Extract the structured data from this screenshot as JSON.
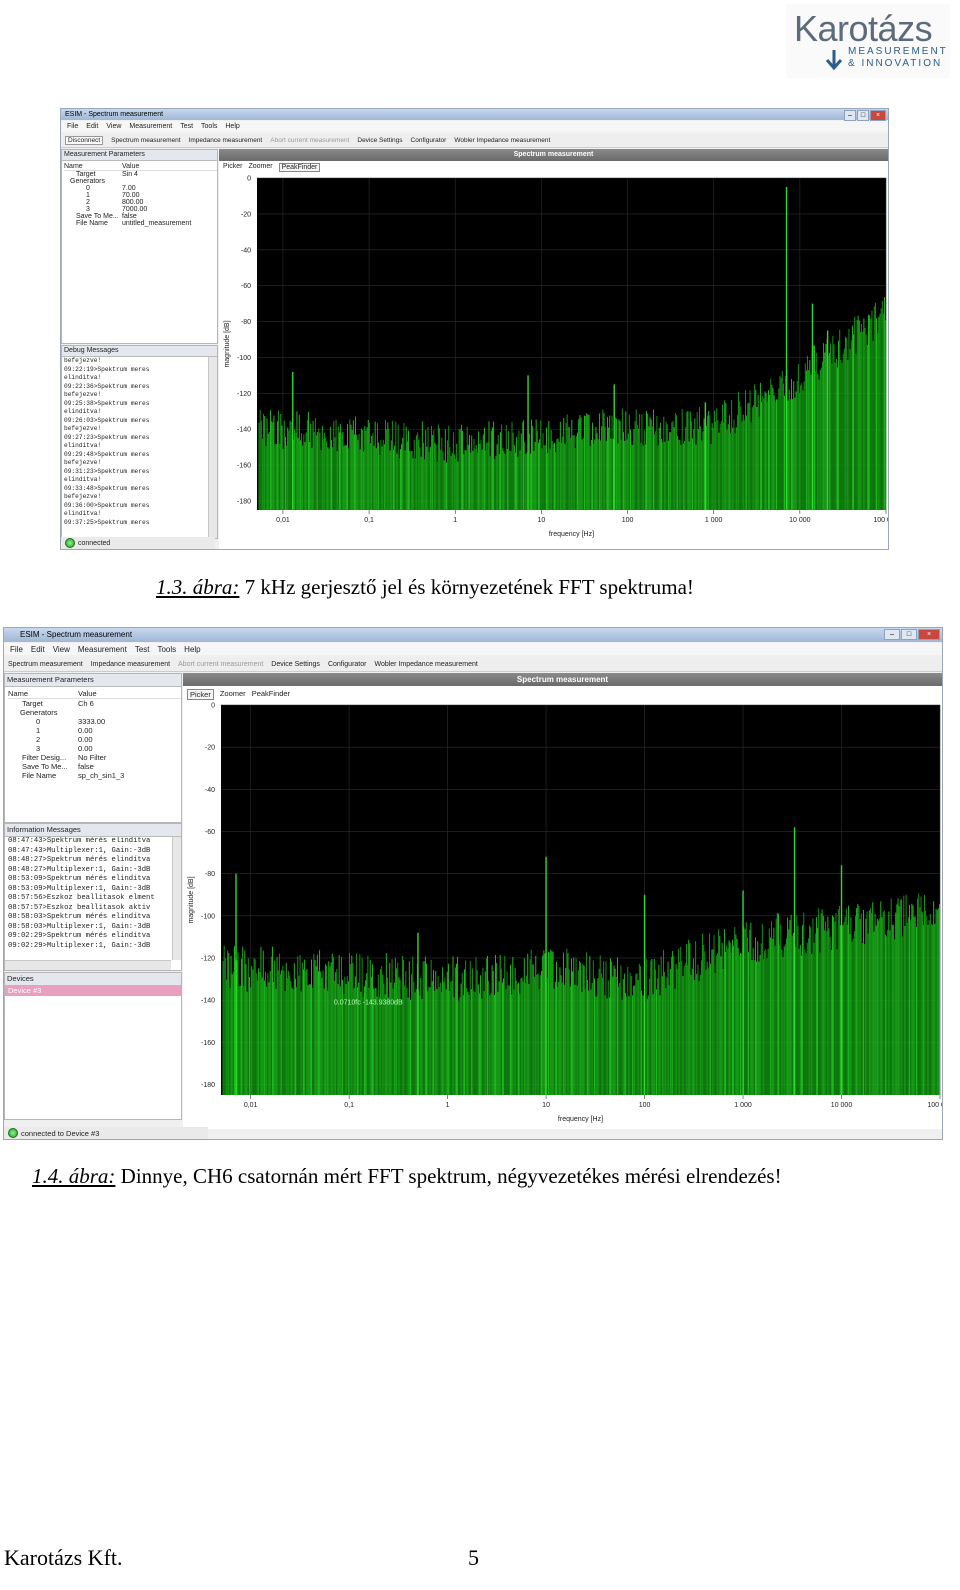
{
  "logo": {
    "word": "Karotázs",
    "line1": "MEASUREMENT",
    "line2": "& INNOVATION"
  },
  "fig1": {
    "window_title": "ESIM - Spectrum measurement",
    "menu": [
      "File",
      "Edit",
      "View",
      "Measurement",
      "Test",
      "Tools",
      "Help"
    ],
    "toolbar": {
      "disconnect": "Disconnect",
      "items": [
        "Spectrum measurement",
        "Impedance measurement"
      ],
      "abort": "Abort current measurement",
      "items2": [
        "Device Settings",
        "Configurator",
        "Wobler Impedance measurement"
      ]
    },
    "params": {
      "title": "Measurement Parameters",
      "col_name": "Name",
      "col_value": "Value",
      "rows": [
        {
          "name": "Target",
          "value": "Sin 4"
        },
        {
          "name": "Generators",
          "value": ""
        },
        {
          "name": "0",
          "value": "7.00"
        },
        {
          "name": "1",
          "value": "70.00"
        },
        {
          "name": "2",
          "value": "800.00"
        },
        {
          "name": "3",
          "value": "7000.00"
        },
        {
          "name": "Save To Me...",
          "value": "false"
        },
        {
          "name": "File Name",
          "value": "untitled_measurement"
        }
      ]
    },
    "debug": {
      "title": "Debug Messages",
      "lines": [
        "befejezve!",
        "09:22:19>Spektrum meres",
        "elinditva!",
        "09:22:36>Spektrum meres",
        "befejezve!",
        "09:25:38>Spektrum meres",
        "elinditva!",
        "09:26:03>Spektrum meres",
        "befejezve!",
        "09:27:23>Spektrum meres",
        "elinditva!",
        "09:29:48>Spektrum meres",
        "befejezve!",
        "09:31:23>Spektrum meres",
        "elinditva!",
        "09:33:48>Spektrum meres",
        "befejezve!",
        "09:36:00>Spektrum meres",
        "elinditva!",
        "09:37:25>Spektrum meres"
      ]
    },
    "plot": {
      "banner": "Spectrum measurement",
      "tabs": [
        "Picker",
        "Zoomer",
        "PeakFinder"
      ]
    },
    "status": "connected"
  },
  "fig2": {
    "window_title": "ESIM - Spectrum measurement",
    "menu": [
      "File",
      "Edit",
      "View",
      "Measurement",
      "Test",
      "Tools",
      "Help"
    ],
    "toolbar": {
      "items": [
        "Spectrum measurement",
        "Impedance measurement"
      ],
      "abort": "Abort current measurement",
      "items2": [
        "Device Settings",
        "Configurator",
        "Wobler Impedance measurement"
      ]
    },
    "params": {
      "title": "Measurement Parameters",
      "col_name": "Name",
      "col_value": "Value",
      "rows": [
        {
          "name": "Target",
          "value": "Ch 6"
        },
        {
          "name": "Generators",
          "value": ""
        },
        {
          "name": "0",
          "value": "3333.00"
        },
        {
          "name": "1",
          "value": "0.00"
        },
        {
          "name": "2",
          "value": "0.00"
        },
        {
          "name": "3",
          "value": "0.00"
        },
        {
          "name": "Filter Desig...",
          "value": "No Filter"
        },
        {
          "name": "Save To Me...",
          "value": "false"
        },
        {
          "name": "File Name",
          "value": "sp_ch_sin1_3"
        }
      ]
    },
    "info": {
      "title": "Information Messages",
      "lines": [
        "08:47:43>Spektrum mérés elindítva",
        "08:47:43>Multiplexer:1, Gain:-3dB",
        "08:48:27>Spektrum mérés elindítva",
        "08:48:27>Multiplexer:1, Gain:-3dB",
        "08:53:09>Spektrum mérés elindítva",
        "08:53:09>Multiplexer:1, Gain:-3dB",
        "08:57:56>Eszkoz beallitasok elment",
        "08:57:57>Eszkoz beallitasok aktiv",
        "08:58:03>Spektrum mérés elindítva",
        "08:58:03>Multiplexer:1, Gain:-3dB",
        "09:02:29>Spektrum mérés elindítva",
        "09:02:29>Multiplexer:1, Gain:-3dB"
      ]
    },
    "devices": {
      "title": "Devices",
      "item": "Device #3"
    },
    "plot": {
      "banner": "Spectrum measurement",
      "tabs": [
        "Picker",
        "Zoomer",
        "PeakFinder"
      ],
      "marker": "0.0710fc -143.9380dB"
    },
    "status": "connected to Device #3"
  },
  "chart_data": [
    {
      "type": "bar",
      "title": "Spectrum measurement",
      "xlabel": "frequency [Hz]",
      "ylabel": "magnitude [dB]",
      "x_scale": "log",
      "xlim": [
        0.005,
        100000
      ],
      "ylim": [
        -185,
        0
      ],
      "x_ticks": [
        "0,01",
        "0,1",
        "1",
        "10",
        "100",
        "1 000",
        "10 000",
        "100 000"
      ],
      "y_ticks": [
        "0",
        "-20",
        "-40",
        "-60",
        "-80",
        "-100",
        "-120",
        "-140",
        "-160",
        "-180"
      ],
      "grid": true,
      "peaks": [
        {
          "x": 0.013,
          "y": -108
        },
        {
          "x": 7,
          "y": -110
        },
        {
          "x": 70,
          "y": -115
        },
        {
          "x": 800,
          "y": -125
        },
        {
          "x": 7000,
          "y": -5
        },
        {
          "x": 14000,
          "y": -70
        },
        {
          "x": 21000,
          "y": -85
        }
      ],
      "noise_floor": [
        {
          "x": 0.01,
          "y": -140
        },
        {
          "x": 1,
          "y": -148
        },
        {
          "x": 10,
          "y": -143
        },
        {
          "x": 100,
          "y": -138
        },
        {
          "x": 1000,
          "y": -138
        },
        {
          "x": 7000,
          "y": -115
        },
        {
          "x": 100000,
          "y": -75
        }
      ]
    },
    {
      "type": "bar",
      "title": "Spectrum measurement",
      "xlabel": "frequency [Hz]",
      "ylabel": "magnitude [dB]",
      "x_scale": "log",
      "xlim": [
        0.005,
        100000
      ],
      "ylim": [
        -185,
        0
      ],
      "x_ticks": [
        "0,01",
        "0,1",
        "1",
        "10",
        "100",
        "1 000",
        "10 000",
        "100 000"
      ],
      "y_ticks": [
        "0",
        "-20",
        "-40",
        "-60",
        "-80",
        "-100",
        "-120",
        "-140",
        "-160",
        "-180"
      ],
      "grid": true,
      "peaks": [
        {
          "x": 0.0071,
          "y": -80
        },
        {
          "x": 0.5,
          "y": -108
        },
        {
          "x": 10,
          "y": -72
        },
        {
          "x": 100,
          "y": -90
        },
        {
          "x": 1000,
          "y": -88
        },
        {
          "x": 3333,
          "y": -58
        },
        {
          "x": 10000,
          "y": -76
        }
      ],
      "noise_floor": [
        {
          "x": 0.01,
          "y": -125
        },
        {
          "x": 1,
          "y": -130
        },
        {
          "x": 10,
          "y": -125
        },
        {
          "x": 100,
          "y": -130
        },
        {
          "x": 1000,
          "y": -112
        },
        {
          "x": 10000,
          "y": -105
        },
        {
          "x": 100000,
          "y": -98
        }
      ]
    }
  ],
  "caption1": {
    "num": "1.3. ábra:",
    "text": " 7 kHz gerjesztő jel és környezetének FFT spektruma!"
  },
  "caption2": {
    "num": "1.4. ábra:",
    "text": " Dinnye, CH6 csatornán mért FFT spektrum, négyvezetékes mérési elrendezés!"
  },
  "footer": {
    "company": "Karotázs Kft.",
    "page": "5"
  }
}
